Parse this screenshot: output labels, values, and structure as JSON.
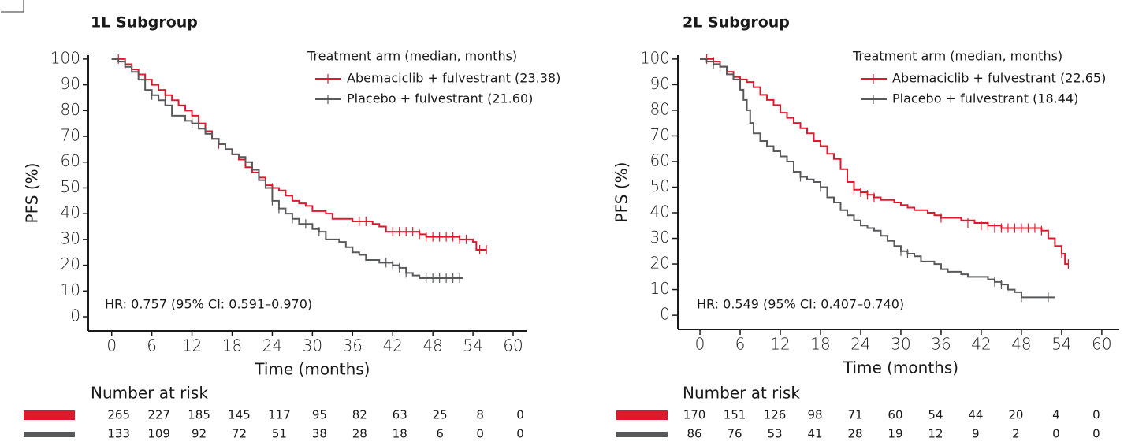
{
  "chart_data": [
    {
      "type": "step",
      "title": "1L Subgroup",
      "y_label": "PFS (%)",
      "x_label": "Time (months)",
      "legend_title": "Treatment arm (median, months)",
      "annotation": "HR: 0.757 (95% CI: 0.591–0.970)",
      "at_risk_title": "Number at risk",
      "xlim": [
        -3.5,
        62
      ],
      "ylim": [
        -5.5,
        101.5
      ],
      "xticks": [
        0,
        6,
        12,
        18,
        24,
        30,
        36,
        42,
        48,
        54,
        60
      ],
      "yticks": [
        0,
        10,
        20,
        30,
        40,
        50,
        60,
        70,
        80,
        90,
        100
      ],
      "series": [
        {
          "name": "Abemaciclib + fulvestrant (23.38)",
          "color": "#e0182d",
          "x": [
            0,
            1,
            2,
            3,
            4,
            5,
            6,
            7,
            8,
            9,
            10,
            11,
            12,
            13,
            14,
            15,
            16,
            17,
            18,
            19,
            20,
            21,
            22,
            23,
            24,
            25,
            26,
            27,
            28,
            29,
            30,
            32,
            33,
            36,
            39,
            40,
            41,
            44,
            46,
            47,
            52,
            54,
            54.5,
            56
          ],
          "values": [
            100,
            100,
            98,
            96,
            94,
            92,
            90,
            88,
            86,
            84,
            82,
            80,
            78,
            75,
            72,
            69,
            67,
            65,
            63,
            61,
            58,
            56,
            54,
            51,
            50,
            49,
            47,
            45,
            44,
            43,
            41,
            40,
            38,
            37,
            36,
            35,
            33,
            33,
            32,
            31,
            30,
            29,
            26,
            26
          ],
          "censored_x": [
            1,
            2,
            8,
            12,
            16,
            24,
            37,
            38,
            42,
            43,
            44,
            45,
            46,
            47,
            48,
            49,
            50,
            51,
            52,
            53,
            55,
            56
          ],
          "censored_values": [
            100,
            98,
            86,
            78,
            67,
            50,
            37,
            37,
            33,
            33,
            33,
            33,
            32,
            31,
            31,
            31,
            31,
            31,
            30,
            30,
            26,
            26
          ],
          "at_risk": [
            265,
            227,
            185,
            145,
            117,
            95,
            82,
            63,
            25,
            8,
            0
          ]
        },
        {
          "name": "Placebo + fulvestrant (21.60)",
          "color": "#58595b",
          "x": [
            0,
            1,
            2,
            3,
            4,
            5,
            6,
            7,
            8,
            9,
            10,
            11,
            12,
            13,
            14,
            15,
            16,
            17,
            18,
            19,
            20,
            21,
            22,
            23,
            24,
            25,
            26,
            27,
            28,
            30,
            31,
            32,
            34,
            35,
            36,
            37,
            38,
            40,
            42,
            43,
            44,
            45,
            46,
            52.5
          ],
          "values": [
            100,
            99,
            97,
            95,
            92,
            88,
            86,
            84,
            82,
            78,
            78,
            76,
            75,
            73,
            71,
            69,
            67,
            65,
            63,
            62,
            60,
            57,
            53,
            50,
            45,
            42,
            40,
            38,
            36,
            34,
            33,
            30,
            29,
            27,
            25,
            24,
            22,
            21,
            20,
            19,
            17,
            16,
            15,
            15
          ],
          "censored_x": [
            6,
            12,
            24,
            25,
            27,
            29,
            31,
            41,
            42,
            43,
            44,
            47,
            48,
            49,
            50,
            51,
            52
          ],
          "censored_values": [
            86,
            75,
            45,
            42,
            38,
            36,
            33,
            21,
            20,
            19,
            17,
            15,
            15,
            15,
            15,
            15,
            15
          ],
          "at_risk": [
            133,
            109,
            92,
            72,
            51,
            38,
            28,
            18,
            6,
            0,
            0
          ]
        }
      ]
    },
    {
      "type": "step",
      "title": "2L Subgroup",
      "y_label": "PFS (%)",
      "x_label": "Time (months)",
      "legend_title": "Treatment arm (median, months)",
      "annotation": "HR: 0.549 (95% CI: 0.407–0.740)",
      "at_risk_title": "Number at risk",
      "xlim": [
        -3.3,
        62.6
      ],
      "ylim": [
        -5.5,
        101.5
      ],
      "xticks": [
        0,
        6,
        12,
        18,
        24,
        30,
        36,
        42,
        48,
        54,
        60
      ],
      "yticks": [
        0,
        10,
        20,
        30,
        40,
        50,
        60,
        70,
        80,
        90,
        100
      ],
      "series": [
        {
          "name": "Abemaciclib + fulvestrant (22.65)",
          "color": "#e0182d",
          "x": [
            0,
            2,
            3,
            4,
            5,
            6,
            7,
            8,
            9,
            10,
            11,
            12,
            13,
            14,
            15,
            16,
            17,
            18,
            19,
            20,
            21,
            22,
            23,
            24,
            25,
            26,
            27,
            29,
            30,
            31,
            32,
            34,
            35,
            36,
            39,
            41,
            43,
            45,
            51,
            52,
            53,
            54,
            54.5,
            55
          ],
          "values": [
            100,
            99,
            97,
            95,
            93,
            92,
            91,
            89,
            86,
            84,
            82,
            79,
            77,
            75,
            73,
            71,
            68,
            66,
            63,
            61,
            57,
            52,
            49,
            48,
            47,
            46,
            45,
            44,
            43,
            42,
            41,
            40,
            39,
            38,
            37,
            36,
            35,
            34,
            33,
            30,
            27,
            24,
            20,
            20
          ],
          "censored_x": [
            1,
            2,
            23,
            24,
            25,
            26,
            36,
            40,
            42,
            43,
            44,
            45,
            46,
            47,
            48,
            49,
            50,
            51,
            54,
            55
          ],
          "censored_values": [
            100,
            99,
            49,
            48,
            47,
            46,
            38,
            36,
            35,
            35,
            34,
            34,
            34,
            34,
            34,
            34,
            34,
            33,
            24,
            20
          ],
          "at_risk": [
            170,
            151,
            126,
            98,
            71,
            60,
            54,
            44,
            20,
            4,
            0
          ]
        },
        {
          "name": "Placebo + fulvestrant (18.44)",
          "color": "#58595b",
          "x": [
            0,
            1,
            2,
            3,
            4,
            5,
            6,
            6.5,
            7,
            7.5,
            8,
            9,
            10,
            11,
            12,
            13,
            14,
            15,
            16,
            17,
            18,
            19,
            20,
            21,
            22,
            23,
            24,
            25,
            26,
            27,
            28,
            29,
            30,
            31,
            32,
            33,
            35,
            36,
            37,
            39,
            40,
            43,
            44,
            45,
            46,
            47,
            48,
            53
          ],
          "values": [
            100,
            99,
            98,
            97,
            94,
            92,
            88,
            84,
            80,
            75,
            71,
            68,
            66,
            64,
            62,
            60,
            56,
            54,
            53,
            52,
            50,
            46,
            44,
            41,
            39,
            37,
            35,
            34,
            33,
            31,
            29,
            27,
            25,
            24,
            23,
            21,
            20,
            18,
            17,
            16,
            15,
            14,
            13,
            12,
            10,
            9,
            7,
            7
          ],
          "censored_x": [
            2,
            3,
            15,
            18,
            30,
            31,
            44,
            45,
            48,
            52
          ],
          "censored_values": [
            98,
            97,
            54,
            50,
            25,
            24,
            13,
            12,
            7,
            7
          ],
          "at_risk": [
            86,
            76,
            53,
            41,
            28,
            19,
            12,
            9,
            2,
            0,
            0
          ]
        }
      ]
    }
  ]
}
